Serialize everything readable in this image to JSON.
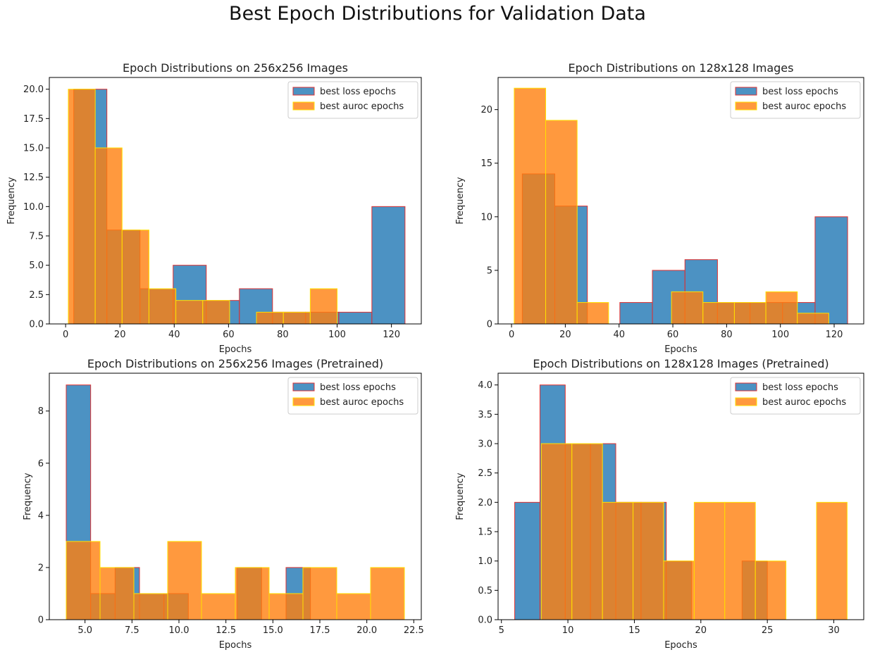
{
  "title": "Best Epoch Distributions for Validation Data",
  "colors": {
    "loss_fill": "#1f77b4",
    "loss_edge": "#e03030",
    "auroc_fill": "#ff7f0e",
    "auroc_edge": "#ffe000"
  },
  "chart_data": [
    {
      "type": "bar",
      "subtype": "histogram-overlay",
      "title": "Epoch Distributions on 256x256 Images",
      "xlabel": "Epochs",
      "ylabel": "Frequency",
      "xlim": [
        -6,
        131
      ],
      "ylim": [
        0,
        21
      ],
      "xticks": [
        0,
        20,
        40,
        60,
        80,
        100,
        120
      ],
      "yticks": [
        0.0,
        2.5,
        5.0,
        7.5,
        10.0,
        12.5,
        15.0,
        17.5,
        20.0
      ],
      "legend": "top-right",
      "series": [
        {
          "name": "best loss epochs",
          "bins": [
            [
              3,
              15.2
            ],
            [
              15.2,
              27.4
            ],
            [
              27.4,
              39.6
            ],
            [
              39.6,
              51.8
            ],
            [
              51.8,
              64
            ],
            [
              64,
              76.2
            ],
            [
              76.2,
              88.4
            ],
            [
              88.4,
              100.6
            ],
            [
              100.6,
              112.8
            ],
            [
              112.8,
              125
            ]
          ],
          "values": [
            20,
            8,
            3,
            5,
            2,
            3,
            1,
            1,
            1,
            10
          ]
        },
        {
          "name": "best auroc epochs",
          "bins": [
            [
              1,
              10.9
            ],
            [
              10.9,
              20.8
            ],
            [
              20.8,
              30.7
            ],
            [
              30.7,
              40.6
            ],
            [
              40.6,
              50.5
            ],
            [
              50.5,
              60.4
            ],
            [
              60.4,
              70.3
            ],
            [
              70.3,
              80.2
            ],
            [
              80.2,
              90.1
            ],
            [
              90.1,
              100
            ]
          ],
          "values": [
            20,
            15,
            8,
            3,
            2,
            2,
            0,
            1,
            1,
            3
          ]
        }
      ]
    },
    {
      "type": "bar",
      "subtype": "histogram-overlay",
      "title": "Epoch Distributions on 128x128 Images",
      "xlabel": "Epochs",
      "ylabel": "Frequency",
      "xlim": [
        -5,
        131
      ],
      "ylim": [
        0,
        23
      ],
      "xticks": [
        0,
        20,
        40,
        60,
        80,
        100,
        120
      ],
      "yticks": [
        0,
        5,
        10,
        15,
        20
      ],
      "legend": "top-right",
      "series": [
        {
          "name": "best loss epochs",
          "bins": [
            [
              4,
              16.1
            ],
            [
              16.1,
              28.2
            ],
            [
              28.2,
              40.3
            ],
            [
              40.3,
              52.4
            ],
            [
              52.4,
              64.5
            ],
            [
              64.5,
              76.6
            ],
            [
              76.6,
              88.7
            ],
            [
              88.7,
              100.8
            ],
            [
              100.8,
              112.9
            ],
            [
              112.9,
              125
            ]
          ],
          "values": [
            14,
            11,
            0,
            2,
            5,
            6,
            2,
            2,
            2,
            10
          ]
        },
        {
          "name": "best auroc epochs",
          "bins": [
            [
              1,
              12.7
            ],
            [
              12.7,
              24.4
            ],
            [
              24.4,
              36.1
            ],
            [
              36.1,
              47.8
            ],
            [
              47.8,
              59.5
            ],
            [
              59.5,
              71.2
            ],
            [
              71.2,
              82.9
            ],
            [
              82.9,
              94.6
            ],
            [
              94.6,
              106.3
            ],
            [
              106.3,
              118
            ]
          ],
          "values": [
            22,
            19,
            2,
            0,
            0,
            3,
            2,
            2,
            3,
            1
          ]
        }
      ]
    },
    {
      "type": "bar",
      "subtype": "histogram-overlay",
      "title": "Epoch Distributions on 256x256 Images (Pretrained)",
      "xlabel": "Epochs",
      "ylabel": "Frequency",
      "xlim": [
        3.1,
        22.9
      ],
      "ylim": [
        0,
        9.45
      ],
      "xticks": [
        5.0,
        7.5,
        10.0,
        12.5,
        15.0,
        17.5,
        20.0,
        22.5
      ],
      "yticks": [
        0,
        2,
        4,
        6,
        8
      ],
      "legend": "top-right",
      "series": [
        {
          "name": "best loss epochs",
          "bins": [
            [
              4,
              5.3
            ],
            [
              5.3,
              6.6
            ],
            [
              6.6,
              7.9
            ],
            [
              7.9,
              9.2
            ],
            [
              9.2,
              10.5
            ],
            [
              10.5,
              11.8
            ],
            [
              11.8,
              13.1
            ],
            [
              13.1,
              14.4
            ],
            [
              14.4,
              15.7
            ],
            [
              15.7,
              17
            ]
          ],
          "values": [
            9,
            1,
            2,
            1,
            1,
            0,
            0,
            2,
            0,
            2
          ]
        },
        {
          "name": "best auroc epochs",
          "bins": [
            [
              4,
              5.8
            ],
            [
              5.8,
              7.6
            ],
            [
              7.6,
              9.4
            ],
            [
              9.4,
              11.2
            ],
            [
              11.2,
              13
            ],
            [
              13,
              14.8
            ],
            [
              14.8,
              16.6
            ],
            [
              16.6,
              18.4
            ],
            [
              18.4,
              20.2
            ],
            [
              20.2,
              22
            ]
          ],
          "values": [
            3,
            2,
            1,
            3,
            1,
            2,
            1,
            2,
            1,
            2
          ]
        }
      ]
    },
    {
      "type": "bar",
      "subtype": "histogram-overlay",
      "title": "Epoch Distributions on 128x128 Images (Pretrained)",
      "xlabel": "Epochs",
      "ylabel": "Frequency",
      "xlim": [
        4.75,
        32.25
      ],
      "ylim": [
        0,
        4.2
      ],
      "xticks": [
        5,
        10,
        15,
        20,
        25,
        30
      ],
      "yticks": [
        0.0,
        0.5,
        1.0,
        1.5,
        2.0,
        2.5,
        3.0,
        3.5,
        4.0
      ],
      "legend": "top-right",
      "series": [
        {
          "name": "best loss epochs",
          "bins": [
            [
              6,
              7.9
            ],
            [
              7.9,
              9.8
            ],
            [
              9.8,
              11.7
            ],
            [
              11.7,
              13.6
            ],
            [
              13.6,
              15.5
            ],
            [
              15.5,
              17.4
            ],
            [
              17.4,
              19.3
            ],
            [
              19.3,
              21.2
            ],
            [
              21.2,
              23.1
            ],
            [
              23.1,
              25
            ]
          ],
          "values": [
            2,
            4,
            3,
            3,
            2,
            2,
            1,
            0,
            0,
            1
          ]
        },
        {
          "name": "best auroc epochs",
          "bins": [
            [
              8,
              10.3
            ],
            [
              10.3,
              12.6
            ],
            [
              12.6,
              14.9
            ],
            [
              14.9,
              17.2
            ],
            [
              17.2,
              19.5
            ],
            [
              19.5,
              21.8
            ],
            [
              21.8,
              24.1
            ],
            [
              24.1,
              26.4
            ],
            [
              26.4,
              28.7
            ],
            [
              28.7,
              31
            ]
          ],
          "values": [
            3,
            3,
            2,
            2,
            1,
            2,
            2,
            1,
            0,
            2
          ]
        }
      ]
    }
  ]
}
